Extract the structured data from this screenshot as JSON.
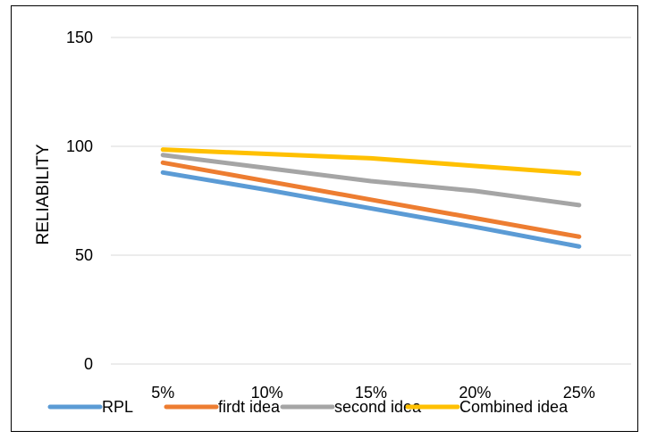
{
  "chart_data": {
    "type": "line",
    "title": "",
    "xlabel": "",
    "ylabel": "RELIABILITY",
    "categories": [
      "5%",
      "10%",
      "15%",
      "20%",
      "25%"
    ],
    "ylim": [
      0,
      150
    ],
    "yticks": [
      "0",
      "50",
      "100",
      "150"
    ],
    "grid": true,
    "legend_position": "bottom",
    "series": [
      {
        "name": "RPL",
        "values": [
          88,
          80,
          71.5,
          63,
          54
        ],
        "color": "#5B9BD5"
      },
      {
        "name": "firdt idea",
        "values": [
          92.5,
          84,
          75.5,
          67,
          58.5
        ],
        "color": "#ED7D31"
      },
      {
        "name": "second idea",
        "values": [
          96,
          90,
          84,
          79.5,
          73
        ],
        "color": "#A5A5A5"
      },
      {
        "name": "Combined idea",
        "values": [
          98.5,
          96.5,
          94.5,
          91,
          87.5
        ],
        "color": "#FFC000"
      }
    ]
  }
}
